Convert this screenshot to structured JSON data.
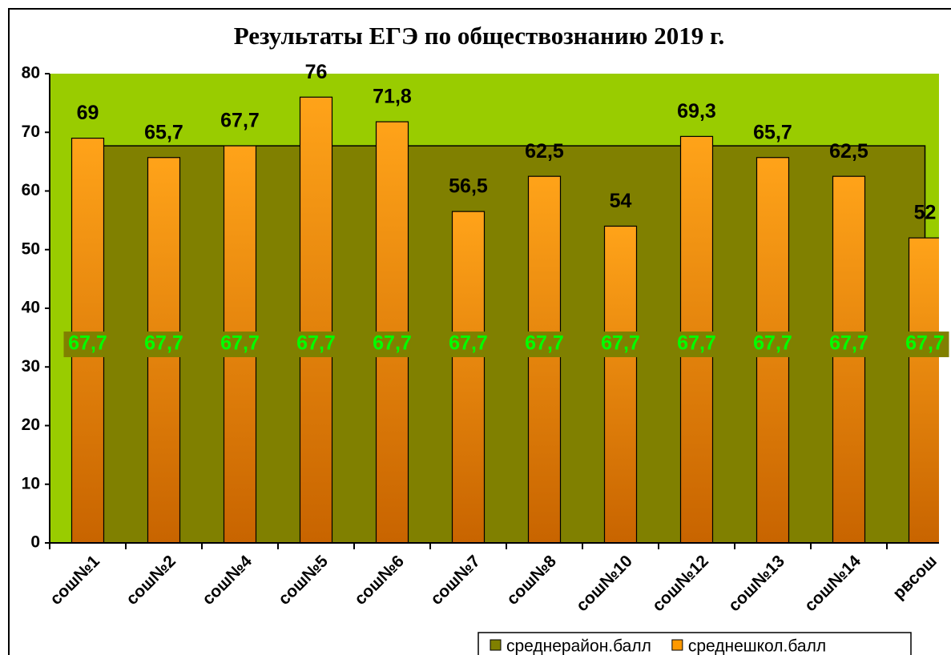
{
  "chart_data": {
    "type": "bar",
    "title": "Результаты  ЕГЭ по обществознанию 2019 г.",
    "categories": [
      "сош№1",
      "сош№2",
      "сош№4",
      "сош№5",
      "сош№6",
      "сош№7",
      "сош№8",
      "сош№10",
      "сош№12",
      "сош№13",
      "сош№14",
      "рвсош"
    ],
    "series": [
      {
        "name": "среднерайон.балл",
        "type": "area",
        "color": "#808000",
        "values": [
          67.7,
          67.7,
          67.7,
          67.7,
          67.7,
          67.7,
          67.7,
          67.7,
          67.7,
          67.7,
          67.7,
          67.7
        ],
        "value_labels": [
          "67,7",
          "67,7",
          "67,7",
          "67,7",
          "67,7",
          "67,7",
          "67,7",
          "67,7",
          "67,7",
          "67,7",
          "67,7",
          "67,7"
        ],
        "label_color": "#00ff00"
      },
      {
        "name": "среднешкол.балл",
        "type": "bar",
        "color": "#ff9900",
        "values": [
          69,
          65.7,
          67.7,
          76,
          71.8,
          56.5,
          62.5,
          54,
          69.3,
          65.7,
          62.5,
          52
        ],
        "value_labels": [
          "69",
          "65,7",
          "67,7",
          "76",
          "71,8",
          "56,5",
          "62,5",
          "54",
          "69,3",
          "65,7",
          "62,5",
          "52"
        ],
        "label_color": "#000000"
      }
    ],
    "ylim": [
      0,
      80
    ],
    "yticks": [
      0,
      10,
      20,
      30,
      40,
      50,
      60,
      70,
      80
    ],
    "plot_color": "#99cc00",
    "legend": "bottom"
  }
}
